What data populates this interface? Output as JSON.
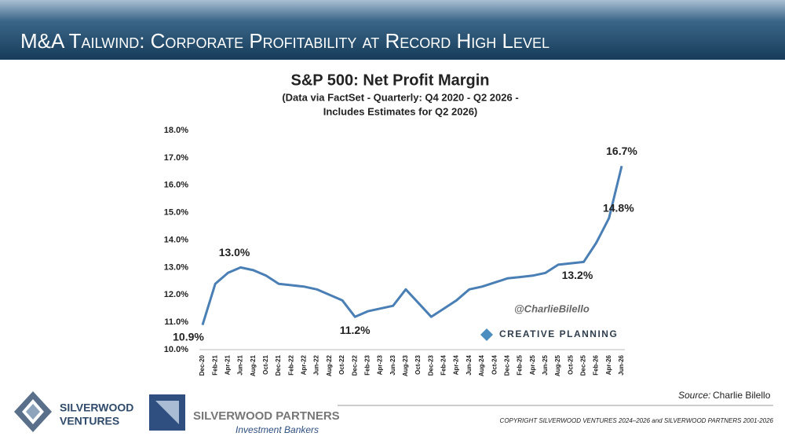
{
  "header": {
    "title": "M&A Tailwind: Corporate Profitability at Record High Level"
  },
  "chart_data": {
    "type": "line",
    "title": "S&P 500: Net Profit Margin",
    "subtitle": [
      "(Data via FactSet - Quarterly: Q4 2020 - Q2 2026 -",
      "Includes Estimates for Q2 2026)"
    ],
    "categories": [
      "Dec-20",
      "Feb-21",
      "Apr-21",
      "Jun-21",
      "Aug-21",
      "Oct-21",
      "Dec-21",
      "Feb-22",
      "Apr-22",
      "Jun-22",
      "Aug-22",
      "Oct-22",
      "Dec-22",
      "Feb-23",
      "Apr-23",
      "Jun-23",
      "Aug-23",
      "Oct-23",
      "Dec-23",
      "Feb-24",
      "Apr-24",
      "Jun-24",
      "Aug-24",
      "Oct-24",
      "Dec-24",
      "Feb-25",
      "Apr-25",
      "Jun-25",
      "Aug-25",
      "Oct-25",
      "Dec-25",
      "Feb-26",
      "Apr-26",
      "Jun-26"
    ],
    "values": [
      10.9,
      12.4,
      12.8,
      13.0,
      12.9,
      12.7,
      12.4,
      12.35,
      12.3,
      12.2,
      12.0,
      11.8,
      11.2,
      11.4,
      11.5,
      11.6,
      12.2,
      11.7,
      11.2,
      11.5,
      11.8,
      12.2,
      12.3,
      12.45,
      12.6,
      12.65,
      12.7,
      12.8,
      13.1,
      13.15,
      13.2,
      13.9,
      14.8,
      16.7
    ],
    "value_labels": [
      "10.9%",
      null,
      null,
      "13.0%",
      null,
      null,
      null,
      null,
      null,
      null,
      null,
      null,
      "11.2%",
      null,
      null,
      null,
      null,
      null,
      null,
      null,
      null,
      null,
      null,
      null,
      null,
      null,
      null,
      null,
      null,
      null,
      "13.2%",
      null,
      "14.8%",
      "16.7%"
    ],
    "color": "#4a7fb5",
    "ylim": [
      10,
      18
    ],
    "yticks": [
      {
        "value": 10,
        "label": "10.0%"
      },
      {
        "value": 11,
        "label": "11.0%"
      },
      {
        "value": 12,
        "label": "12.0%"
      },
      {
        "value": 13,
        "label": "13.0%"
      },
      {
        "value": 14,
        "label": "14.0%"
      },
      {
        "value": 15,
        "label": "15.0%"
      },
      {
        "value": 16,
        "label": "16.0%"
      },
      {
        "value": 17,
        "label": "17.0%"
      },
      {
        "value": 18,
        "label": "18.0%"
      }
    ],
    "grid": false,
    "annotations": [
      "@CharlieBilello",
      "CREATIVE PLANNING"
    ]
  },
  "footer": {
    "source_label": "Source:",
    "source": "Charlie Bilello",
    "logo1": [
      "SILVERWOOD",
      "VENTURES"
    ],
    "logo2": [
      "SILVERWOOD PARTNERS",
      "Investment Bankers"
    ],
    "copyright": "COPYRIGHT SILVERWOOD VENTURES 2024–2026 and SILVERWOOD PARTNERS 2001-2026"
  }
}
